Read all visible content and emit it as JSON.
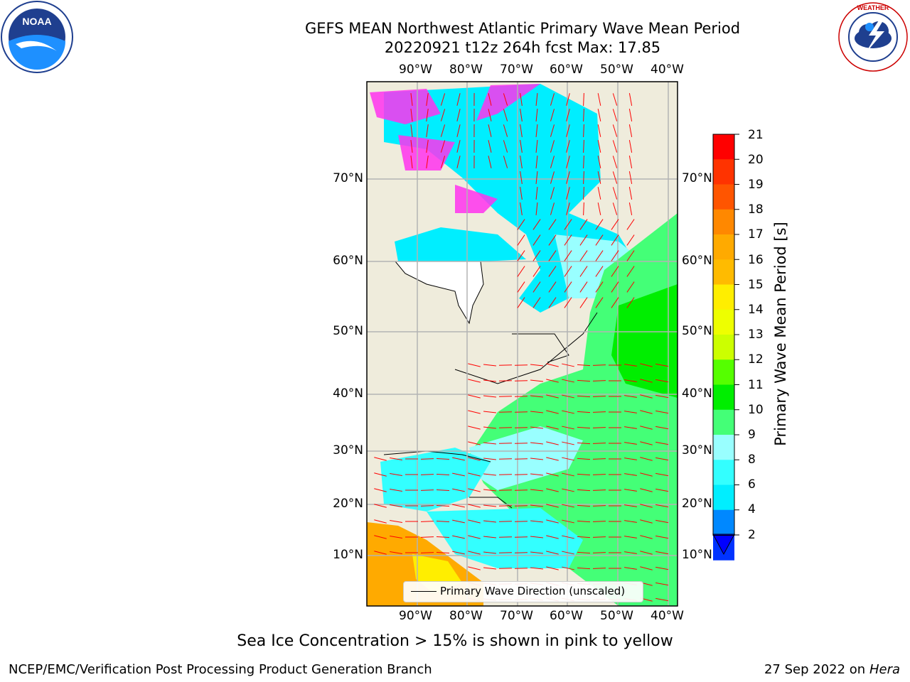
{
  "title_line1": "GEFS MEAN Northwest Atlantic Primary Wave Mean Period",
  "title_line2": "20220921 t12z 264h fcst   Max: 17.85",
  "colors": {
    "land": "#efecdc",
    "grid": "#b3b3b3",
    "arrow": "#ff0000",
    "ice": "#ff33ee",
    "colorbar": [
      "#0033ff",
      "#0088ff",
      "#00eeff",
      "#33ffff",
      "#99ffff",
      "#44ff77",
      "#00ee00",
      "#55ff00",
      "#ccff00",
      "#eeff00",
      "#ffee00",
      "#ffbb00",
      "#ffaa00",
      "#ff8800",
      "#ff5500",
      "#ff3300",
      "#ff0000"
    ]
  },
  "map": {
    "lon_labels": [
      "90°W",
      "80°W",
      "70°W",
      "60°W",
      "50°W",
      "40°W"
    ],
    "lat_labels": [
      "70°N",
      "60°N",
      "50°N",
      "40°N",
      "30°N",
      "20°N",
      "10°N"
    ],
    "legend_label": "Primary Wave Direction (unscaled)"
  },
  "colorbar": {
    "label": "Primary Wave Mean Period [s]",
    "ticks": [
      "21",
      "20",
      "19",
      "18",
      "17",
      "16",
      "15",
      "14",
      "13",
      "12",
      "11",
      "10",
      "9",
      "8",
      "6",
      "4",
      "2"
    ]
  },
  "ice_note": "Sea Ice Concentration > 15% is shown in pink to yellow",
  "footer_left": "NCEP/EMC/Verification Post Processing Product Generation Branch",
  "footer_date": "27 Sep 2022 on",
  "footer_machine": "Hera",
  "logos": {
    "left": "NOAA",
    "right": "NATIONAL WEATHER SERVICE"
  }
}
